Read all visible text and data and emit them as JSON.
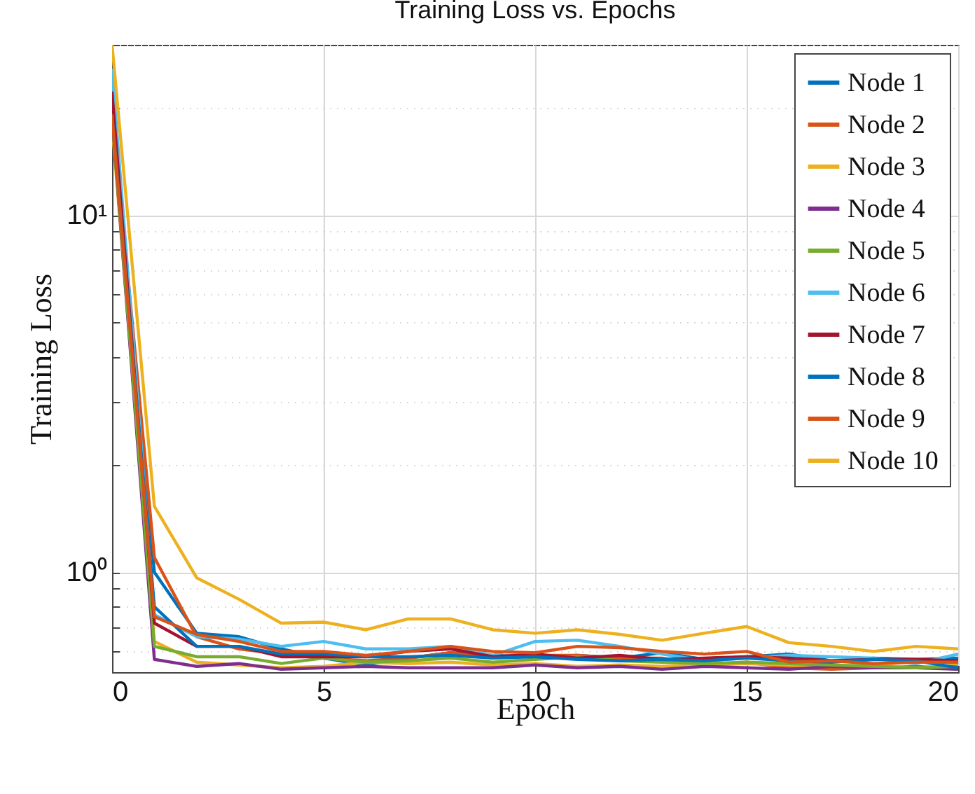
{
  "chart_data": {
    "type": "line",
    "title": "Training Loss vs. Epochs",
    "xlabel": "Epoch",
    "ylabel": "Training Loss",
    "x": [
      0,
      1,
      2,
      3,
      4,
      5,
      6,
      7,
      8,
      9,
      10,
      11,
      12,
      13,
      14,
      15,
      16,
      17,
      18,
      19,
      20
    ],
    "log": "y",
    "grid": true,
    "legend": "top right",
    "line_style": "solid",
    "xlim": [
      0,
      20
    ],
    "xticks": [
      0,
      5,
      10,
      15,
      20
    ],
    "ylim": [
      0.525,
      30
    ],
    "yticks": [
      {
        "value": 0.6,
        "label": null
      },
      {
        "value": 0.7,
        "label": null
      },
      {
        "value": 0.8,
        "label": null
      },
      {
        "value": 0.9,
        "label": null
      },
      {
        "value": 1,
        "label": "10⁰"
      },
      {
        "value": 2,
        "label": null
      },
      {
        "value": 3,
        "label": null
      },
      {
        "value": 4,
        "label": null
      },
      {
        "value": 5,
        "label": null
      },
      {
        "value": 6,
        "label": null
      },
      {
        "value": 7,
        "label": null
      },
      {
        "value": 8,
        "label": null
      },
      {
        "value": 9,
        "label": null
      },
      {
        "value": 10,
        "label": "10¹"
      },
      {
        "value": 20,
        "label": null
      },
      {
        "value": 30,
        "label": null
      }
    ],
    "series": [
      {
        "name": "Node 1",
        "color": "#0072bd",
        "values": [
          20,
          1.0,
          0.675,
          0.66,
          0.61,
          0.575,
          0.55,
          0.575,
          0.595,
          0.585,
          0.58,
          0.585,
          0.575,
          0.595,
          0.57,
          0.58,
          0.59,
          0.565,
          0.575,
          0.57,
          0.575
        ]
      },
      {
        "name": "Node 2",
        "color": "#d95319",
        "values": [
          20,
          1.1,
          0.66,
          0.61,
          0.59,
          0.575,
          0.565,
          0.575,
          0.595,
          0.575,
          0.585,
          0.585,
          0.575,
          0.575,
          0.55,
          0.56,
          0.54,
          0.535,
          0.54,
          0.545,
          0.535
        ]
      },
      {
        "name": "Node 3",
        "color": "#edb120",
        "values": [
          18,
          0.64,
          0.56,
          0.55,
          0.54,
          0.545,
          0.56,
          0.555,
          0.56,
          0.55,
          0.555,
          0.545,
          0.55,
          0.545,
          0.55,
          0.555,
          0.55,
          0.545,
          0.55,
          0.54,
          0.55
        ]
      },
      {
        "name": "Node 4",
        "color": "#7e2f8e",
        "values": [
          19,
          0.57,
          0.545,
          0.555,
          0.535,
          0.54,
          0.545,
          0.54,
          0.54,
          0.54,
          0.55,
          0.54,
          0.545,
          0.535,
          0.545,
          0.54,
          0.535,
          0.545,
          0.54,
          0.54,
          0.535
        ]
      },
      {
        "name": "Node 5",
        "color": "#77ac30",
        "values": [
          19,
          0.62,
          0.58,
          0.58,
          0.555,
          0.575,
          0.56,
          0.565,
          0.575,
          0.56,
          0.57,
          0.58,
          0.565,
          0.56,
          0.555,
          0.56,
          0.555,
          0.55,
          0.545,
          0.54,
          0.545
        ]
      },
      {
        "name": "Node 6",
        "color": "#4dbeee",
        "values": [
          25.5,
          0.76,
          0.66,
          0.65,
          0.62,
          0.64,
          0.61,
          0.61,
          0.62,
          0.585,
          0.64,
          0.645,
          0.62,
          0.59,
          0.565,
          0.575,
          0.585,
          0.58,
          0.575,
          0.555,
          0.59
        ]
      },
      {
        "name": "Node 7",
        "color": "#a2142f",
        "values": [
          22,
          0.72,
          0.62,
          0.62,
          0.58,
          0.58,
          0.58,
          0.6,
          0.61,
          0.58,
          0.59,
          0.575,
          0.585,
          0.57,
          0.575,
          0.58,
          0.575,
          0.565,
          0.57,
          0.57,
          0.565
        ]
      },
      {
        "name": "Node 8",
        "color": "#0072bd",
        "values": [
          19,
          0.8,
          0.62,
          0.62,
          0.59,
          0.59,
          0.58,
          0.58,
          0.585,
          0.575,
          0.58,
          0.57,
          0.565,
          0.57,
          0.565,
          0.575,
          0.565,
          0.56,
          0.57,
          0.565,
          0.54
        ]
      },
      {
        "name": "Node 9",
        "color": "#d95319",
        "values": [
          19,
          0.75,
          0.67,
          0.64,
          0.6,
          0.6,
          0.585,
          0.6,
          0.62,
          0.6,
          0.595,
          0.62,
          0.615,
          0.6,
          0.59,
          0.6,
          0.56,
          0.565,
          0.555,
          0.56,
          0.56
        ]
      },
      {
        "name": "Node 10",
        "color": "#edb120",
        "values": [
          30,
          1.53,
          0.965,
          0.84,
          0.72,
          0.725,
          0.69,
          0.74,
          0.74,
          0.69,
          0.675,
          0.69,
          0.67,
          0.645,
          0.675,
          0.705,
          0.635,
          0.62,
          0.6,
          0.62,
          0.61
        ]
      }
    ]
  }
}
